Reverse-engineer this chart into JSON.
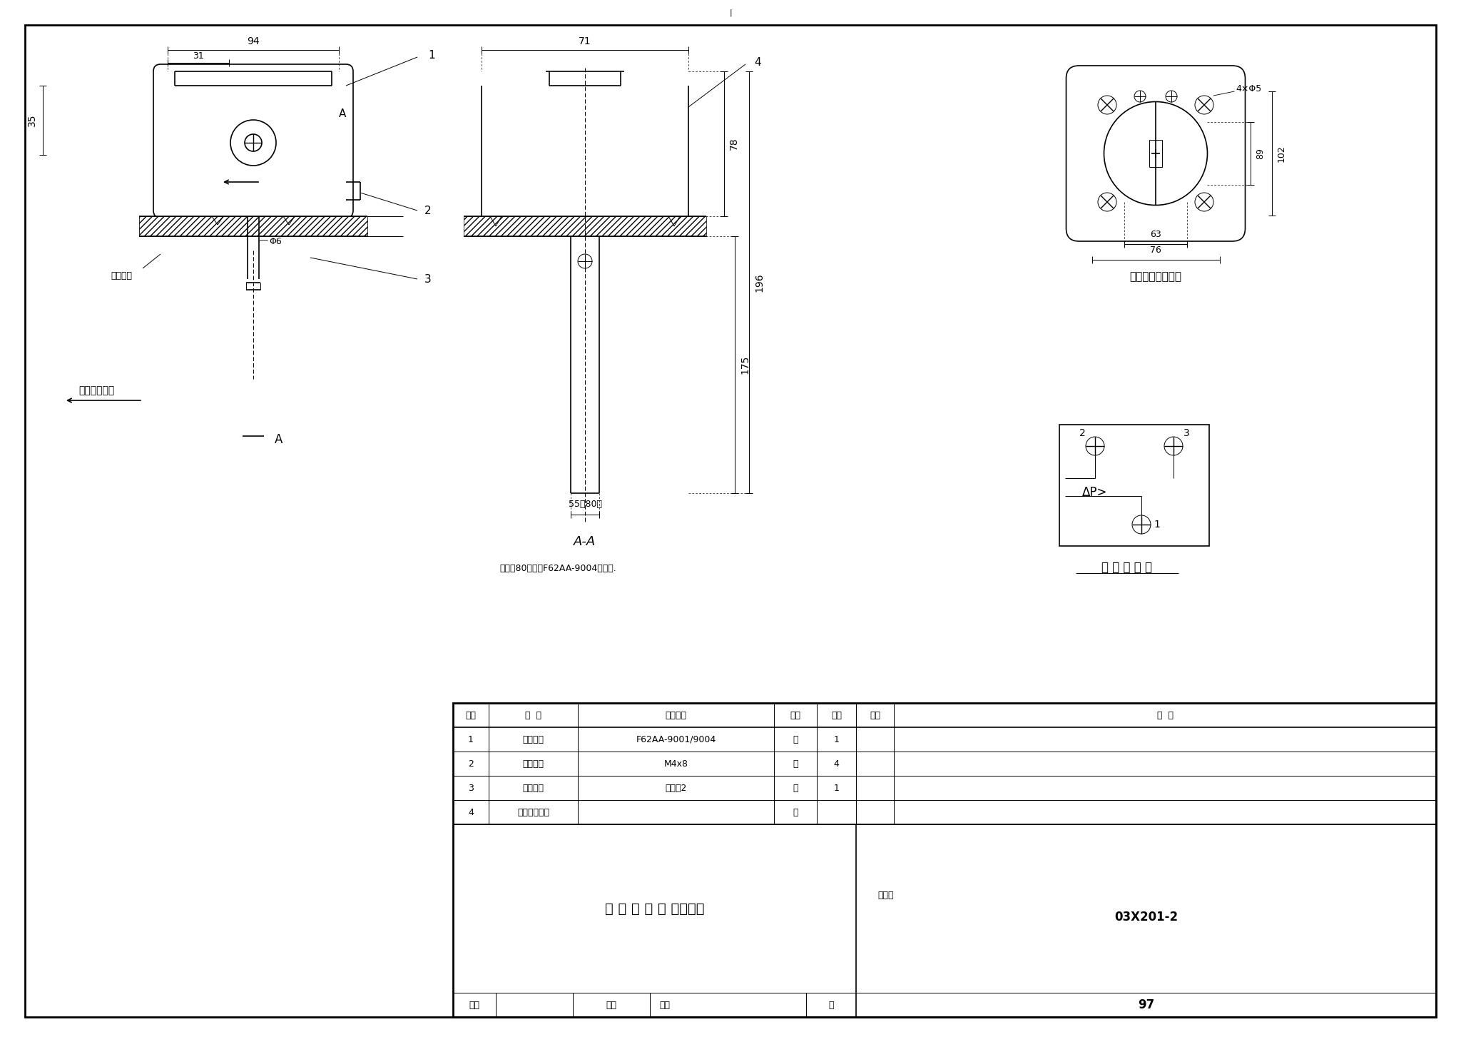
{
  "bg_color": "#ffffff",
  "line_color": "#000000",
  "drawing_number": "03X201-2",
  "page": "97",
  "title_main": "气 流 开 关 安 装（一）",
  "atlas_label": "图集号",
  "page_label": "页",
  "note_text": "注：（80）值为F62AA-9004的宽度.",
  "wind_dir": "空气流动方向",
  "duct_wall_label": "风管管壁",
  "bottom_plate_label": "底板安装孔位置图",
  "wiring_label": "开关接线图",
  "table_headers": [
    "序号",
    "名  称",
    "型号规格",
    "单位",
    "数量",
    "页次",
    "备  注"
  ],
  "table_rows": [
    [
      "1",
      "气流开关",
      "F62AA-9001/9004",
      "套",
      "1",
      "",
      ""
    ],
    [
      "2",
      "自攻螺丝",
      "M4x8",
      "个",
      "4",
      "",
      ""
    ],
    [
      "3",
      "密封胶垫",
      "橡胶厚2",
      "块",
      "1",
      "",
      ""
    ],
    [
      "4",
      "气流开关底板",
      "",
      "个",
      "",
      "",
      ""
    ]
  ],
  "review_label": "审核",
  "check_label": "校对",
  "design_label": "设计"
}
